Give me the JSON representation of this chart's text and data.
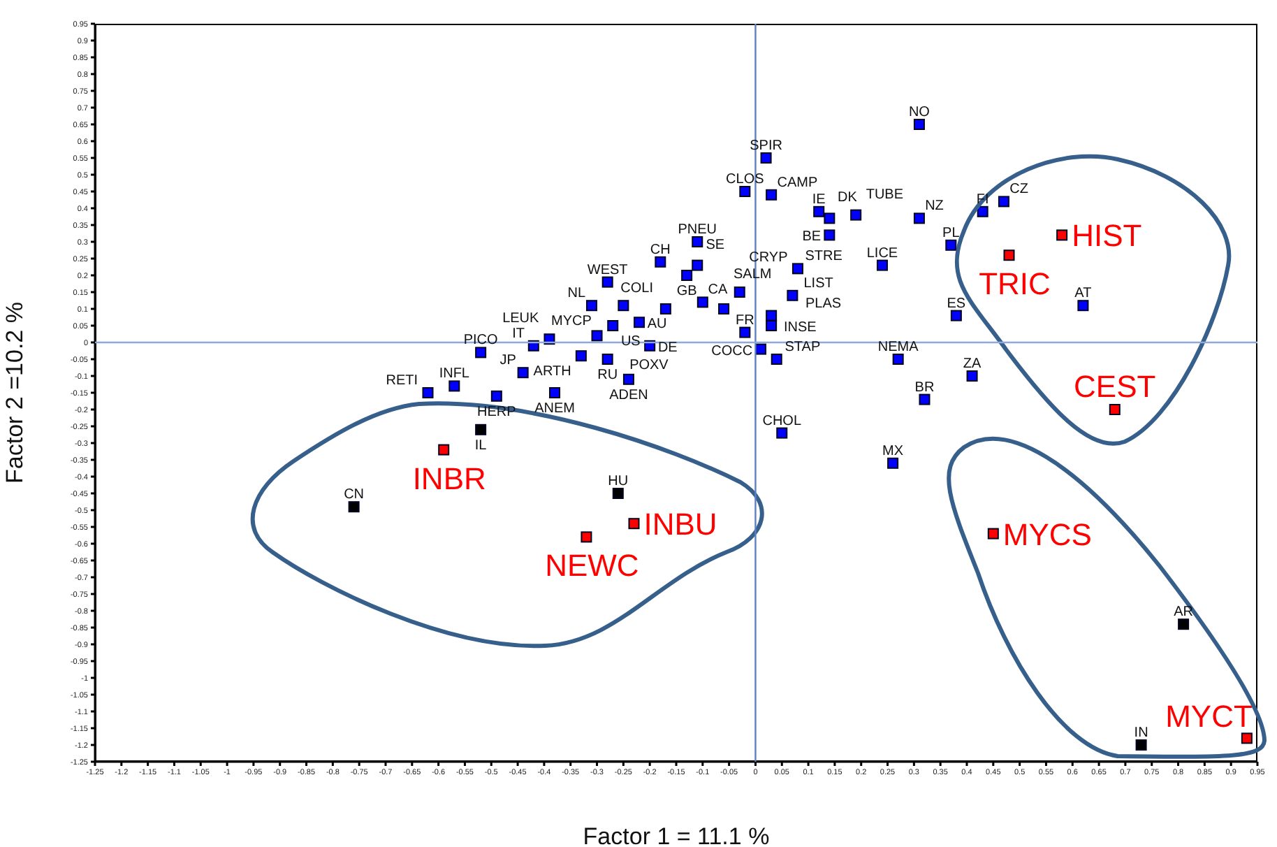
{
  "chart_data": {
    "type": "scatter",
    "xlabel": "Factor 1 = 11.1 %",
    "ylabel": "Factor 2 =10.2 %",
    "xlim": [
      -1.25,
      0.95
    ],
    "ylim": [
      -1.25,
      0.95
    ],
    "xticks": [
      -1.25,
      -1.2,
      -1.15,
      -1.1,
      -1.05,
      -1,
      -0.95,
      -0.9,
      -0.85,
      -0.8,
      -0.75,
      -0.7,
      -0.65,
      -0.6,
      -0.55,
      -0.5,
      -0.45,
      -0.4,
      -0.35,
      -0.3,
      -0.25,
      -0.2,
      -0.15,
      -0.1,
      -0.05,
      0,
      0.05,
      0.1,
      0.15,
      0.2,
      0.25,
      0.3,
      0.35,
      0.4,
      0.45,
      0.5,
      0.55,
      0.6,
      0.65,
      0.7,
      0.75,
      0.8,
      0.85,
      0.9,
      0.95
    ],
    "yticks": [
      -1.25,
      -1.2,
      -1.15,
      -1.1,
      -1.05,
      -1,
      -0.95,
      -0.9,
      -0.85,
      -0.8,
      -0.75,
      -0.7,
      -0.65,
      -0.6,
      -0.55,
      -0.5,
      -0.45,
      -0.4,
      -0.35,
      -0.3,
      -0.25,
      -0.2,
      -0.15,
      -0.1,
      -0.05,
      0,
      0.05,
      0.1,
      0.15,
      0.2,
      0.25,
      0.3,
      0.35,
      0.4,
      0.45,
      0.5,
      0.55,
      0.6,
      0.65,
      0.7,
      0.75,
      0.8,
      0.85,
      0.9,
      0.95
    ],
    "marker": "square",
    "ref_lines": [
      {
        "axis": "x",
        "value": 0,
        "color": "#5b7fc0"
      },
      {
        "axis": "y",
        "value": 0,
        "color": "#8eaadb"
      }
    ],
    "series": [
      {
        "color": "#0000ff",
        "x": [
          0.02,
          -0.02,
          0.03,
          -0.11,
          -0.18,
          -0.11,
          -0.13,
          -0.1,
          -0.06,
          -0.03,
          -0.17,
          -0.28,
          -0.31,
          -0.25,
          -0.22,
          -0.27,
          -0.3,
          -0.42,
          -0.39,
          -0.33,
          -0.28,
          -0.2,
          -0.24,
          -0.52,
          -0.44,
          -0.62,
          -0.57,
          -0.49,
          -0.38,
          -0.02,
          0.01,
          0.04,
          0.03,
          0.03,
          0.07,
          0.08,
          0.05,
          0.31,
          0.12,
          0.14,
          0.14,
          0.19,
          0.31,
          0.43,
          0.47,
          0.37,
          0.24,
          0.38,
          0.62,
          0.27,
          0.41,
          0.32,
          0.26
        ],
        "values": [
          0.55,
          0.45,
          0.44,
          0.3,
          0.24,
          0.23,
          0.2,
          0.12,
          0.1,
          0.15,
          0.1,
          0.18,
          0.11,
          0.11,
          0.06,
          0.05,
          0.02,
          -0.01,
          0.01,
          -0.04,
          -0.05,
          -0.01,
          -0.11,
          -0.03,
          -0.09,
          -0.15,
          -0.13,
          -0.16,
          -0.15,
          0.03,
          -0.02,
          -0.05,
          0.05,
          0.08,
          0.14,
          0.22,
          -0.27,
          0.65,
          0.39,
          0.37,
          0.32,
          0.38,
          0.37,
          0.39,
          0.42,
          0.29,
          0.23,
          0.08,
          0.11,
          -0.05,
          -0.1,
          -0.17,
          -0.36
        ]
      },
      {
        "color": "#000000",
        "x": [
          -0.52,
          -0.76,
          -0.26,
          0.81,
          0.73
        ],
        "values": [
          -0.26,
          -0.49,
          -0.45,
          -0.84,
          -1.2
        ]
      },
      {
        "color": "#ff0000",
        "x": [
          0.58,
          0.48,
          0.68,
          -0.59,
          -0.23,
          -0.32,
          0.45,
          0.93
        ],
        "values": [
          0.32,
          0.26,
          -0.2,
          -0.32,
          -0.54,
          -0.58,
          -0.57,
          -1.18
        ]
      }
    ],
    "annotations": [
      {
        "text": "SPIR",
        "x": 0.02,
        "y": 0.55
      },
      {
        "text": "CLOS",
        "x": -0.02,
        "y": 0.45
      },
      {
        "text": "CAMP",
        "x": 0.03,
        "y": 0.44
      },
      {
        "text": "PNEU",
        "x": -0.11,
        "y": 0.3
      },
      {
        "text": "CH",
        "x": -0.18,
        "y": 0.24
      },
      {
        "text": "SE",
        "x": -0.11,
        "y": 0.23
      },
      {
        "text": "GB",
        "x": -0.13,
        "y": 0.2
      },
      {
        "text": "CA",
        "x": -0.1,
        "y": 0.12
      },
      {
        "text": "SALM",
        "x": -0.06,
        "y": 0.1
      },
      {
        "text": "CRYP",
        "x": -0.03,
        "y": 0.15
      },
      {
        "text": "COLI",
        "x": -0.17,
        "y": 0.1
      },
      {
        "text": "WEST",
        "x": -0.28,
        "y": 0.18
      },
      {
        "text": "NL",
        "x": -0.31,
        "y": 0.11
      },
      {
        "text": "MYCP",
        "x": -0.25,
        "y": 0.11
      },
      {
        "text": "AU",
        "x": -0.22,
        "y": 0.06
      },
      {
        "text": "US",
        "x": -0.27,
        "y": 0.05
      },
      {
        "text": "POXV",
        "x": -0.3,
        "y": 0.02
      },
      {
        "text": "IT",
        "x": -0.42,
        "y": -0.01
      },
      {
        "text": "LEUK",
        "x": -0.39,
        "y": 0.01
      },
      {
        "text": "ARTH",
        "x": -0.33,
        "y": -0.04
      },
      {
        "text": "RU",
        "x": -0.28,
        "y": -0.05
      },
      {
        "text": "DE",
        "x": -0.2,
        "y": -0.01
      },
      {
        "text": "ADEN",
        "x": -0.24,
        "y": -0.11
      },
      {
        "text": "PICO",
        "x": -0.52,
        "y": -0.03
      },
      {
        "text": "JP",
        "x": -0.44,
        "y": -0.09
      },
      {
        "text": "RETI",
        "x": -0.62,
        "y": -0.15
      },
      {
        "text": "INFL",
        "x": -0.57,
        "y": -0.13
      },
      {
        "text": "HERP",
        "x": -0.49,
        "y": -0.16
      },
      {
        "text": "ANEM",
        "x": -0.38,
        "y": -0.15
      },
      {
        "text": "FR",
        "x": -0.02,
        "y": 0.03
      },
      {
        "text": "COCC",
        "x": 0.01,
        "y": -0.02
      },
      {
        "text": "STAP",
        "x": 0.04,
        "y": -0.05
      },
      {
        "text": "INSE",
        "x": 0.03,
        "y": 0.05
      },
      {
        "text": "PLAS",
        "x": 0.03,
        "y": 0.08
      },
      {
        "text": "LIST",
        "x": 0.07,
        "y": 0.14
      },
      {
        "text": "STRE",
        "x": 0.08,
        "y": 0.22
      },
      {
        "text": "CHOL",
        "x": 0.05,
        "y": -0.27
      },
      {
        "text": "NO",
        "x": 0.31,
        "y": 0.65
      },
      {
        "text": "IE",
        "x": 0.12,
        "y": 0.39
      },
      {
        "text": "DK",
        "x": 0.14,
        "y": 0.37
      },
      {
        "text": "BE",
        "x": 0.14,
        "y": 0.32
      },
      {
        "text": "TUBE",
        "x": 0.19,
        "y": 0.38
      },
      {
        "text": "NZ",
        "x": 0.31,
        "y": 0.37
      },
      {
        "text": "FI",
        "x": 0.43,
        "y": 0.39
      },
      {
        "text": "CZ",
        "x": 0.47,
        "y": 0.42
      },
      {
        "text": "PL",
        "x": 0.37,
        "y": 0.29
      },
      {
        "text": "LICE",
        "x": 0.24,
        "y": 0.23
      },
      {
        "text": "ES",
        "x": 0.38,
        "y": 0.08
      },
      {
        "text": "AT",
        "x": 0.62,
        "y": 0.11
      },
      {
        "text": "NEMA",
        "x": 0.27,
        "y": -0.05
      },
      {
        "text": "ZA",
        "x": 0.41,
        "y": -0.1
      },
      {
        "text": "BR",
        "x": 0.32,
        "y": -0.17
      },
      {
        "text": "MX",
        "x": 0.26,
        "y": -0.36
      },
      {
        "text": "IL",
        "x": -0.52,
        "y": -0.26
      },
      {
        "text": "CN",
        "x": -0.76,
        "y": -0.49
      },
      {
        "text": "HU",
        "x": -0.26,
        "y": -0.45
      },
      {
        "text": "AR",
        "x": 0.81,
        "y": -0.84
      },
      {
        "text": "IN",
        "x": 0.73,
        "y": -1.2
      },
      {
        "text": "HIST",
        "x": 0.58,
        "y": 0.32
      },
      {
        "text": "TRIC",
        "x": 0.48,
        "y": 0.26
      },
      {
        "text": "CEST",
        "x": 0.68,
        "y": -0.2
      },
      {
        "text": "INBR",
        "x": -0.59,
        "y": -0.32
      },
      {
        "text": "INBU",
        "x": -0.23,
        "y": -0.54
      },
      {
        "text": "NEWC",
        "x": -0.32,
        "y": -0.58
      },
      {
        "text": "MYCS",
        "x": 0.45,
        "y": -0.57
      },
      {
        "text": "MYCT",
        "x": 0.93,
        "y": -1.18
      }
    ]
  }
}
